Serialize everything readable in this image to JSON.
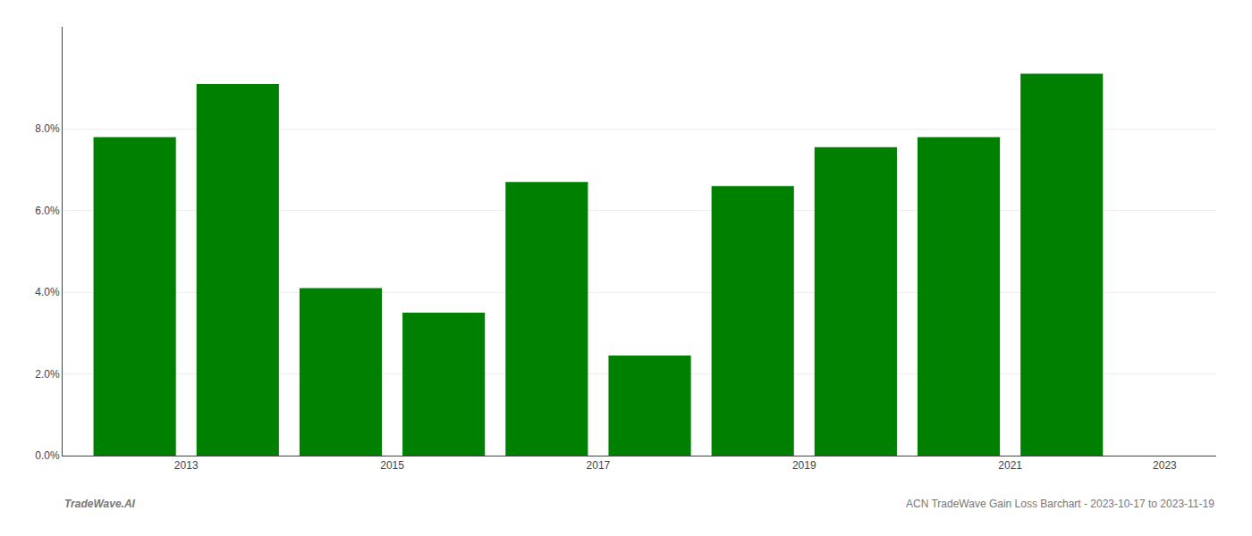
{
  "chart_data": {
    "type": "bar",
    "x": [
      2013,
      2014,
      2015,
      2016,
      2017,
      2018,
      2019,
      2020,
      2021,
      2022
    ],
    "values": [
      0.078,
      0.091,
      0.041,
      0.035,
      0.067,
      0.0245,
      0.066,
      0.0755,
      0.078,
      0.0935
    ],
    "color": "#008000",
    "xlim": [
      2012.3,
      2023.5
    ],
    "xticks": [
      {
        "value": 2013.5,
        "label": "2013"
      },
      {
        "value": 2015.5,
        "label": "2015"
      },
      {
        "value": 2017.5,
        "label": "2017"
      },
      {
        "value": 2019.5,
        "label": "2019"
      },
      {
        "value": 2021.5,
        "label": "2021"
      },
      {
        "value": 2023.0,
        "label": "2023"
      }
    ],
    "ylim": [
      0.0,
      0.105
    ],
    "yticks": [
      {
        "value": 0.0,
        "label": "0.0%"
      },
      {
        "value": 0.02,
        "label": "2.0%"
      },
      {
        "value": 0.04,
        "label": "4.0%"
      },
      {
        "value": 0.06,
        "label": "6.0%"
      },
      {
        "value": 0.08,
        "label": "8.0%"
      }
    ],
    "grid": true,
    "annotations": [
      "TradeWave.AI",
      "ACN TradeWave Gain Loss Barchart - 2023-10-17 to 2023-11-19"
    ]
  }
}
